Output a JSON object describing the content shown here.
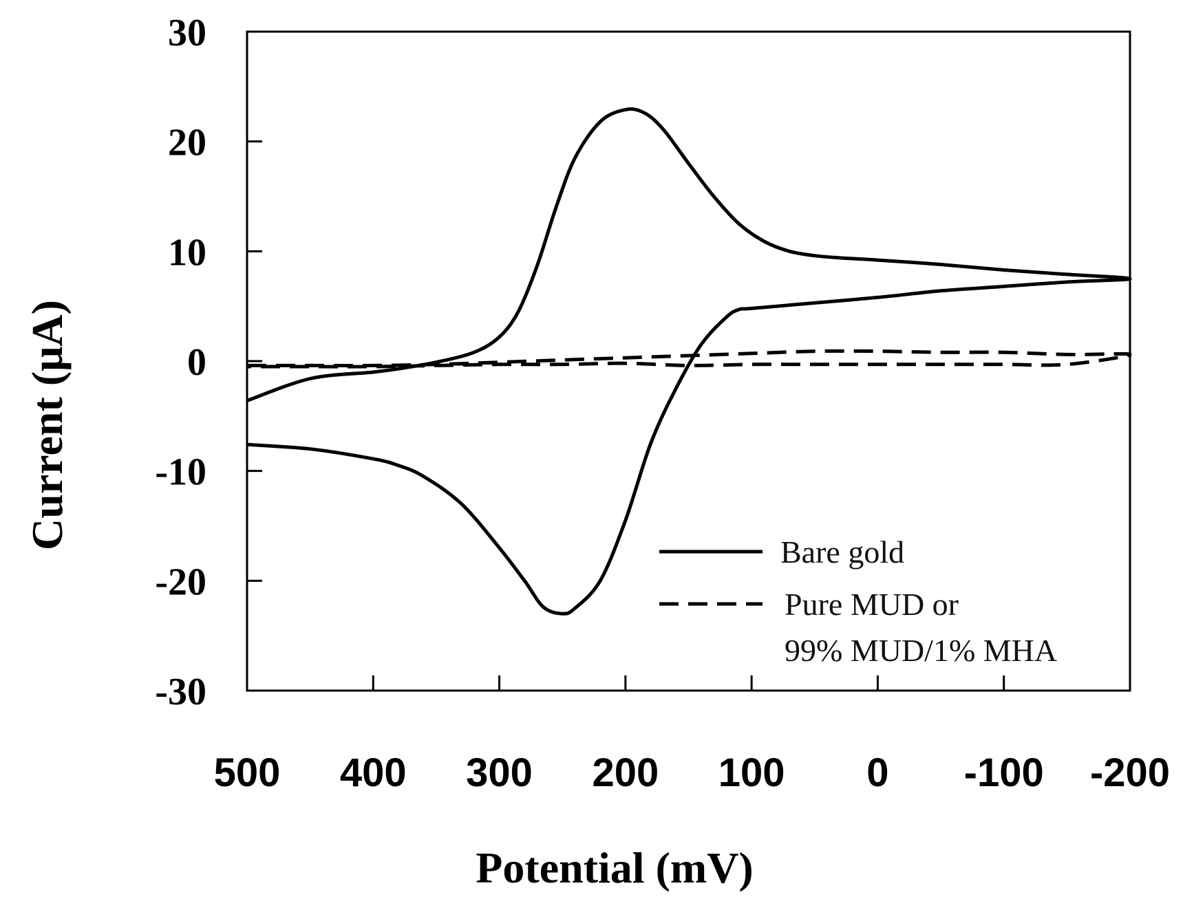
{
  "chart_data": {
    "type": "line",
    "title": "",
    "xlabel": "Potential (mV)",
    "ylabel": "Current (μA)",
    "xlim": [
      500,
      -200
    ],
    "ylim": [
      -30,
      30
    ],
    "x_ticks": [
      500,
      400,
      300,
      200,
      100,
      0,
      -100,
      -200
    ],
    "x_tick_labels": [
      "500",
      "400",
      "300",
      "200",
      "100",
      "0",
      "-100",
      "-200"
    ],
    "y_ticks": [
      30,
      20,
      10,
      0,
      -10,
      -20,
      -30
    ],
    "y_tick_labels": [
      "30",
      "20",
      "10",
      "0",
      "-10",
      "-20",
      "-30"
    ],
    "grid": false,
    "legend_position": "bottom-right",
    "series": [
      {
        "name": "Bare gold",
        "style": "solid",
        "x": [
          500,
          450,
          400,
          380,
          350,
          320,
          300,
          285,
          270,
          255,
          240,
          220,
          200,
          185,
          170,
          150,
          130,
          110,
          90,
          70,
          50,
          30,
          0,
          -50,
          -100,
          -150,
          -200,
          -150,
          -100,
          -50,
          0,
          50,
          100,
          110,
          120,
          140,
          160,
          180,
          200,
          220,
          240,
          250,
          265,
          280,
          300,
          330,
          360,
          380,
          400,
          450,
          500
        ],
        "y": [
          -3.6,
          -1.6,
          -1.0,
          -0.7,
          -0.1,
          0.8,
          2.2,
          4.5,
          8.7,
          14.0,
          18.5,
          21.8,
          22.9,
          22.6,
          21.1,
          18.0,
          15.0,
          12.5,
          10.9,
          10.0,
          9.6,
          9.4,
          9.2,
          8.8,
          8.3,
          7.9,
          7.5,
          7.2,
          6.8,
          6.4,
          5.8,
          5.3,
          4.8,
          4.7,
          4.0,
          1.5,
          -2.5,
          -7.5,
          -14.5,
          -20.0,
          -22.5,
          -23.0,
          -22.4,
          -20.0,
          -17.0,
          -13.0,
          -10.5,
          -9.5,
          -8.9,
          -8.0,
          -7.6
        ]
      },
      {
        "name": "Pure MUD or 99% MUD/1% MHA",
        "style": "dashed",
        "x": [
          500,
          450,
          400,
          350,
          300,
          250,
          200,
          150,
          100,
          50,
          0,
          -50,
          -100,
          -150,
          -200,
          -150,
          -100,
          -50,
          0,
          50,
          100,
          150,
          200,
          250,
          300,
          350,
          400,
          450,
          500
        ],
        "y": [
          -0.4,
          -0.4,
          -0.4,
          -0.3,
          -0.1,
          0.1,
          0.3,
          0.5,
          0.7,
          0.9,
          0.9,
          0.8,
          0.8,
          0.6,
          0.6,
          -0.3,
          -0.3,
          -0.3,
          -0.3,
          -0.3,
          -0.3,
          -0.4,
          -0.2,
          -0.3,
          -0.3,
          -0.4,
          -0.5,
          -0.5,
          -0.5
        ]
      }
    ],
    "legend": [
      {
        "label": "Bare gold",
        "style": "solid"
      },
      {
        "label": "Pure MUD or",
        "style": "dashed"
      },
      {
        "label": "99% MUD/1% MHA",
        "style": "none"
      }
    ]
  }
}
